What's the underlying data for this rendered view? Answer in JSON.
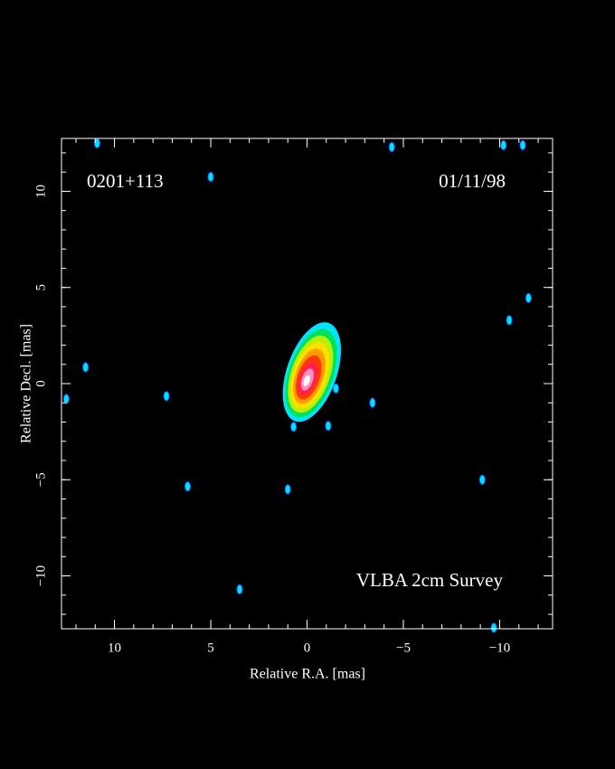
{
  "chart_data": {
    "type": "radio-map",
    "source_name": "0201+113",
    "date": "01/11/98",
    "survey": "VLBA 2cm Survey",
    "x_label": "Relative R.A. [mas]",
    "y_label": "Relative Decl. [mas]",
    "xlim": [
      12.75,
      -12.75
    ],
    "ylim": [
      -12.75,
      12.75
    ],
    "xticks": [
      10,
      5,
      0,
      {
        "value": -5,
        "label": "−5"
      },
      {
        "value": -10,
        "label": "−10"
      }
    ],
    "yticks": [
      {
        "value": -10,
        "label": "−10"
      },
      {
        "value": -5,
        "label": "−5"
      },
      0,
      5,
      10
    ],
    "minor_tick_step": 1,
    "features": {
      "color": "#00e5ff",
      "x": [
        10.9,
        5.0,
        -4.4,
        -10.2,
        -11.2,
        -11.5,
        -10.5,
        11.5,
        12.5,
        7.3,
        -3.4,
        -1.5,
        0.7,
        -1.1,
        6.2,
        1.0,
        -9.1,
        3.5,
        -9.7
      ],
      "y": [
        12.5,
        10.75,
        12.3,
        12.4,
        12.4,
        4.45,
        3.3,
        0.85,
        -0.8,
        -0.65,
        -1.0,
        -0.25,
        -2.25,
        -2.2,
        -5.35,
        -5.5,
        -5.0,
        -10.7,
        -12.7
      ]
    },
    "source": {
      "x": -0.25,
      "y": 0.6,
      "major": 5.4,
      "minor": 2.6,
      "angle": 19,
      "core_x": 0.05,
      "core_y": 0.1,
      "contour_colors": [
        "#00e5ff",
        "#00e060",
        "#b8f000",
        "#ffe000",
        "#ff9a00",
        "#ff3a00",
        "#ff2050",
        "#ff90c0",
        "#ffffff"
      ]
    }
  }
}
